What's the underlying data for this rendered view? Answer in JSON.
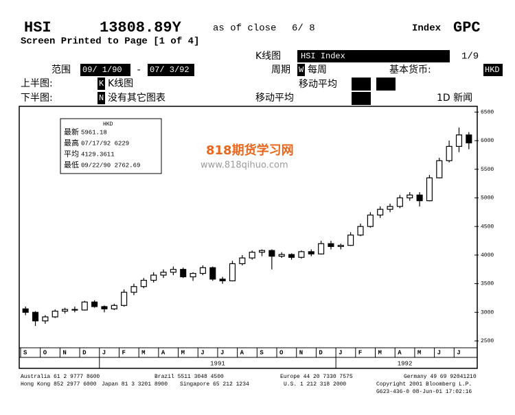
{
  "header": {
    "ticker": "HSI",
    "price": "13808.89Y",
    "as_of": "as of close",
    "date": "6/ 8",
    "index_label": "Index",
    "function": "GPC",
    "printed": "Screen Printed to Page [1 of 4]"
  },
  "controls": {
    "chart_label": "K线图",
    "security": "HSI Index",
    "page": "1/9",
    "range_label": "范围",
    "range_start": "09/ 1/90",
    "range_dash": "-",
    "range_end": "07/ 3/92",
    "period_label": "周期",
    "period_code": "W",
    "period": "每周",
    "currency_label": "基本货币:",
    "currency": "HKD",
    "upper_label": "上半图:",
    "upper_code": "K",
    "upper": "K线图",
    "lower_label": "下半图:",
    "lower_code": "N",
    "lower": "没有其它图表",
    "ma_label_1": "移动平均",
    "ma_label_2": "移动平均",
    "news": "1D 新闻"
  },
  "info_box": {
    "currency": "HKD",
    "rows": [
      [
        "最新",
        "5961.18"
      ],
      [
        "最高",
        "07/17/92 6229"
      ],
      [
        "平均",
        "4129.3611"
      ],
      [
        "最低",
        "09/22/90 2762.69"
      ]
    ]
  },
  "watermark": {
    "title": "818期货学习网",
    "url": "www.818qihuo.com"
  },
  "chart_data": {
    "type": "candlestick",
    "color": "#000000",
    "categories": [
      "S",
      null,
      "O",
      null,
      "N",
      null,
      "D",
      null,
      "J",
      null,
      "F",
      null,
      "M",
      null,
      "A",
      null,
      "M",
      null,
      "J",
      null,
      "J",
      null,
      "A",
      null,
      "S",
      null,
      "O",
      null,
      "N",
      null,
      "D",
      null,
      "J",
      null,
      "F",
      null,
      "M",
      null,
      "A",
      null,
      "M",
      null,
      "J",
      null,
      "J",
      null
    ],
    "years": [
      "1991",
      "1992"
    ],
    "values": [
      [
        3060,
        3100,
        2950,
        3000
      ],
      [
        3000,
        3020,
        2762.69,
        2850
      ],
      [
        2850,
        2950,
        2800,
        2920
      ],
      [
        2920,
        3050,
        2900,
        3020
      ],
      [
        3020,
        3080,
        2980,
        3050
      ],
      [
        3050,
        3100,
        3000,
        3040
      ],
      [
        3040,
        3200,
        3030,
        3180
      ],
      [
        3180,
        3210,
        3080,
        3100
      ],
      [
        3100,
        3120,
        3000,
        3060
      ],
      [
        3060,
        3150,
        3040,
        3120
      ],
      [
        3120,
        3400,
        3100,
        3350
      ],
      [
        3350,
        3500,
        3300,
        3450
      ],
      [
        3450,
        3600,
        3420,
        3560
      ],
      [
        3560,
        3700,
        3520,
        3650
      ],
      [
        3650,
        3750,
        3600,
        3700
      ],
      [
        3700,
        3800,
        3650,
        3750
      ],
      [
        3750,
        3780,
        3600,
        3620
      ],
      [
        3620,
        3700,
        3550,
        3680
      ],
      [
        3680,
        3820,
        3650,
        3780
      ],
      [
        3780,
        3800,
        3550,
        3580
      ],
      [
        3580,
        3620,
        3500,
        3550
      ],
      [
        3550,
        3900,
        3540,
        3850
      ],
      [
        3850,
        4000,
        3820,
        3950
      ],
      [
        3950,
        4080,
        3920,
        4050
      ],
      [
        4050,
        4100,
        3980,
        4080
      ],
      [
        4080,
        4100,
        3750,
        3980
      ],
      [
        3980,
        4050,
        3950,
        4010
      ],
      [
        4010,
        4030,
        3920,
        3960
      ],
      [
        3960,
        4080,
        3940,
        4060
      ],
      [
        4060,
        4100,
        3980,
        4020
      ],
      [
        4020,
        4250,
        4010,
        4200
      ],
      [
        4200,
        4250,
        4100,
        4150
      ],
      [
        4150,
        4200,
        4100,
        4170
      ],
      [
        4170,
        4400,
        4160,
        4350
      ],
      [
        4350,
        4550,
        4330,
        4500
      ],
      [
        4500,
        4750,
        4480,
        4700
      ],
      [
        4700,
        4850,
        4650,
        4800
      ],
      [
        4800,
        4900,
        4750,
        4850
      ],
      [
        4850,
        5050,
        4820,
        5000
      ],
      [
        5000,
        5100,
        4950,
        5050
      ],
      [
        5050,
        5100,
        4850,
        4950
      ],
      [
        4950,
        5400,
        4940,
        5350
      ],
      [
        5350,
        5700,
        5340,
        5650
      ],
      [
        5650,
        6000,
        5620,
        5900
      ],
      [
        5900,
        6229,
        5800,
        6100
      ],
      [
        6100,
        6150,
        5850,
        5961.18
      ]
    ],
    "ylim": [
      2380,
      6600
    ],
    "yticks": [
      2500,
      3000,
      3500,
      4000,
      4500,
      5000,
      5500,
      6000,
      6500
    ]
  },
  "footer": [
    [
      "Australia 61 2 9777 8600",
      "Brazil 5511 3048 4500",
      "Europe 44 20 7330 7575",
      "Germany 49 69 92041210"
    ],
    [
      "Hong Kong 852 2977 6000",
      "Japan 81 3 3201 8900",
      "Singapore 65 212 1234",
      "U.S. 1 212 318 2000",
      "Copyright 2001 Bloomberg L.P."
    ],
    [
      "G623-436-0 08-Jun-01 17:02:16"
    ]
  ]
}
